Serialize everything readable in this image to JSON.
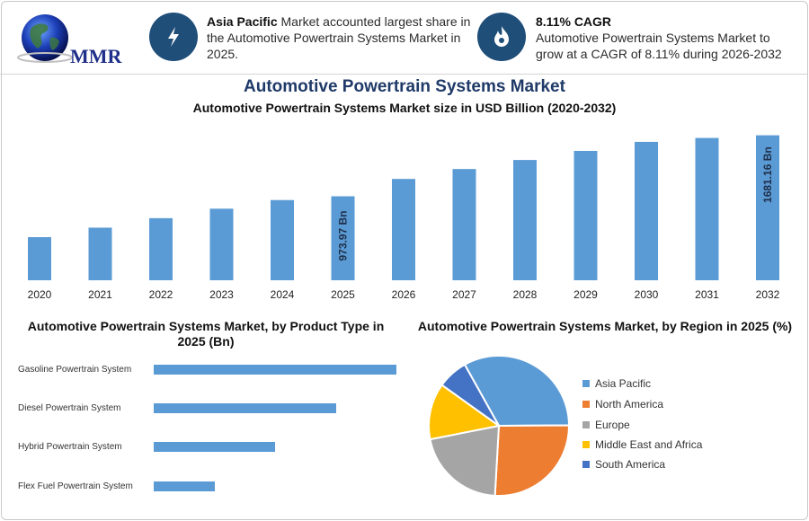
{
  "header": {
    "logo_text": "MMR",
    "info1": {
      "icon": "lightning-icon",
      "bold": "Asia Pacific",
      "line1_rest": " Market accounted largest share in",
      "line2": "the Automotive Powertrain Systems Market in",
      "line3": "2025."
    },
    "info2": {
      "icon": "flame-icon",
      "bold": "8.11% CAGR",
      "line2": "Automotive Powertrain Systems Market to",
      "line3": "grow at a CAGR of 8.11% during 2026-2032"
    }
  },
  "title": "Automotive Powertrain Systems Market",
  "subtitle": "Automotive Powertrain Systems Market size in USD Billion (2020-2032)",
  "product_title_line1": "Automotive Powertrain Systems Market, by Product Type in",
  "product_title_line2": "2025 (Bn)",
  "region_title": "Automotive Powertrain Systems Market, by Region in 2025 (%)",
  "colors": {
    "bar": "#5b9bd5",
    "title": "#1f3a68"
  },
  "chart_data": [
    {
      "type": "bar",
      "categories": [
        "2020",
        "2021",
        "2022",
        "2023",
        "2024",
        "2025",
        "2026",
        "2027",
        "2028",
        "2029",
        "2030",
        "2031",
        "2032"
      ],
      "values": [
        500,
        610,
        720,
        830,
        930,
        973.97,
        1175,
        1290,
        1395,
        1500,
        1605,
        1650,
        1681.16
      ],
      "data_labels": [
        null,
        null,
        null,
        null,
        null,
        "973.97 Bn",
        null,
        null,
        null,
        null,
        null,
        null,
        "1681.16 Bn"
      ],
      "ylim": [
        0,
        1750
      ]
    },
    {
      "type": "bar",
      "orientation": "horizontal",
      "categories": [
        "Gasoline Powertrain System",
        "Diesel Powertrain System",
        "Hybrid Powertrain System",
        "Flex Fuel Powertrain System"
      ],
      "values": [
        100,
        75,
        50,
        25
      ],
      "xlim": [
        0,
        100
      ]
    },
    {
      "type": "pie",
      "labels": [
        "Asia Pacific",
        "North America",
        "Europe",
        "Middle East and Africa",
        "South America"
      ],
      "values": [
        33,
        26,
        21,
        13,
        7
      ],
      "colors": [
        "#5b9bd5",
        "#ed7d31",
        "#a5a5a5",
        "#ffc000",
        "#4472c4"
      ]
    }
  ]
}
